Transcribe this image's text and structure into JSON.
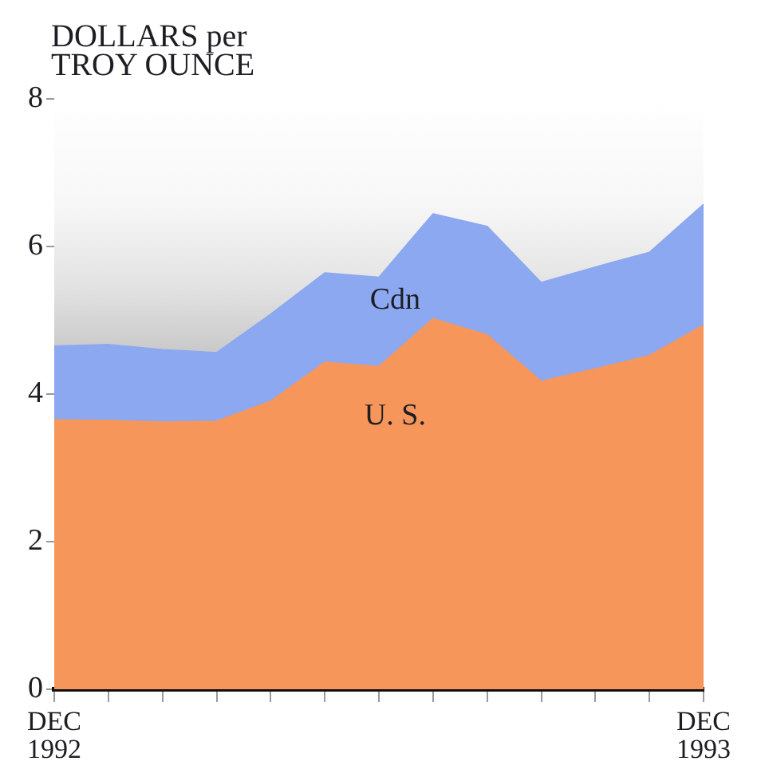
{
  "chart_data": {
    "type": "area",
    "ylabel": "DOLLARS per TROY OUNCE",
    "categories": [
      "DEC 1992",
      null,
      null,
      null,
      null,
      null,
      null,
      null,
      null,
      null,
      null,
      null,
      "DEC 1993"
    ],
    "series": [
      {
        "name": "Cdn",
        "color": "#8ca8f0",
        "values": [
          4.65,
          4.67,
          4.6,
          4.56,
          5.08,
          5.64,
          5.58,
          6.44,
          6.27,
          5.51,
          5.72,
          5.92,
          6.57
        ]
      },
      {
        "name": "U. S.",
        "color": "#f7965a",
        "values": [
          3.65,
          3.64,
          3.62,
          3.63,
          3.9,
          4.43,
          4.37,
          5.02,
          4.8,
          4.17,
          4.34,
          4.52,
          4.93
        ]
      }
    ],
    "ylim": [
      0,
      8
    ],
    "yticks": [
      0,
      2,
      4,
      6,
      8
    ]
  }
}
